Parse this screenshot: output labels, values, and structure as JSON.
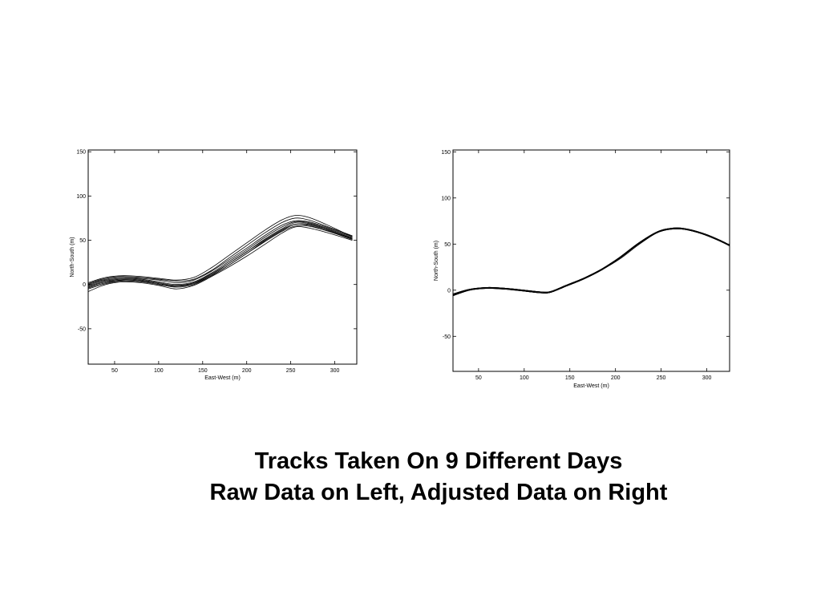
{
  "caption": {
    "line1": "Tracks Taken On 9 Different Days",
    "line2": "Raw Data on Left,  Adjusted Data on Right"
  },
  "chart_data": [
    {
      "type": "line",
      "xlabel": "East-West (m)",
      "ylabel": "North-South (m)",
      "xlim": [
        20,
        325
      ],
      "ylim": [
        -90,
        152
      ],
      "xticks": [
        50,
        100,
        150,
        200,
        250,
        300
      ],
      "yticks": [
        -50,
        0,
        50,
        100,
        150
      ],
      "grid": false,
      "line_color": "#000000",
      "series": [
        {
          "x": [
            20,
            40,
            60,
            80,
            100,
            120,
            140,
            160,
            180,
            200,
            220,
            240,
            255,
            270,
            290,
            320
          ],
          "y": [
            -8,
            0,
            3,
            2,
            -1,
            -5,
            -1,
            9,
            20,
            32,
            45,
            58,
            65,
            64,
            59,
            50
          ]
        },
        {
          "x": [
            20,
            40,
            60,
            80,
            100,
            120,
            140,
            160,
            180,
            200,
            220,
            240,
            255,
            270,
            290,
            320
          ],
          "y": [
            -5,
            1,
            4,
            3,
            0,
            -3,
            0,
            10,
            22,
            35,
            49,
            61,
            68,
            67,
            61,
            51
          ]
        },
        {
          "x": [
            20,
            40,
            60,
            80,
            100,
            120,
            140,
            160,
            180,
            200,
            220,
            240,
            255,
            270,
            290,
            320
          ],
          "y": [
            -3,
            3,
            5,
            4,
            1,
            -2,
            2,
            12,
            24,
            37,
            51,
            63,
            70,
            69,
            63,
            52
          ]
        },
        {
          "x": [
            20,
            40,
            60,
            80,
            100,
            120,
            140,
            160,
            180,
            200,
            220,
            240,
            255,
            270,
            290,
            320
          ],
          "y": [
            -1,
            5,
            7,
            6,
            3,
            0,
            3,
            13,
            26,
            39,
            53,
            65,
            71,
            70,
            64,
            53
          ]
        },
        {
          "x": [
            20,
            40,
            60,
            80,
            100,
            120,
            140,
            160,
            180,
            200,
            220,
            240,
            255,
            270,
            290,
            320
          ],
          "y": [
            0,
            6,
            8,
            7,
            5,
            2,
            5,
            15,
            28,
            41,
            55,
            67,
            72,
            71,
            65,
            54
          ]
        },
        {
          "x": [
            20,
            40,
            60,
            80,
            100,
            120,
            140,
            160,
            180,
            200,
            220,
            240,
            255,
            270,
            290,
            320
          ],
          "y": [
            -2,
            4,
            6,
            5,
            2,
            -1,
            2,
            11,
            24,
            37,
            50,
            62,
            68,
            68,
            62,
            51
          ]
        },
        {
          "x": [
            20,
            40,
            60,
            80,
            100,
            120,
            140,
            160,
            180,
            200,
            220,
            240,
            255,
            270,
            290,
            320
          ],
          "y": [
            1,
            7,
            9,
            8,
            6,
            4,
            6,
            16,
            30,
            44,
            58,
            70,
            75,
            73,
            66,
            55
          ]
        },
        {
          "x": [
            20,
            40,
            60,
            80,
            100,
            120,
            140,
            160,
            180,
            200,
            220,
            240,
            255,
            270,
            290,
            320
          ],
          "y": [
            2,
            8,
            10,
            9,
            7,
            5,
            8,
            19,
            33,
            47,
            61,
            73,
            78,
            76,
            68,
            54
          ]
        },
        {
          "x": [
            20,
            40,
            60,
            80,
            100,
            120,
            140,
            160,
            180,
            200,
            220,
            240,
            255,
            270,
            290,
            320
          ],
          "y": [
            -4,
            2,
            5,
            4,
            1,
            -2,
            1,
            10,
            22,
            35,
            48,
            60,
            66,
            66,
            61,
            52
          ]
        }
      ]
    },
    {
      "type": "line",
      "xlabel": "East-West (m)",
      "ylabel": "North-South (m)",
      "xlim": [
        22,
        325
      ],
      "ylim": [
        -88,
        152
      ],
      "xticks": [
        50,
        100,
        150,
        200,
        250,
        300
      ],
      "yticks": [
        -50,
        0,
        50,
        100,
        150
      ],
      "grid": false,
      "line_color": "#000000",
      "series": [
        {
          "x": [
            22,
            40,
            60,
            80,
            100,
            120,
            130,
            145,
            165,
            185,
            205,
            225,
            245,
            260,
            275,
            295,
            315,
            325
          ],
          "y": [
            -6,
            0,
            2,
            1,
            -1,
            -3,
            -2,
            4,
            12,
            22,
            35,
            50,
            62,
            66,
            66,
            61,
            53,
            48
          ]
        },
        {
          "x": [
            22,
            40,
            60,
            80,
            100,
            120,
            130,
            145,
            165,
            185,
            205,
            225,
            245,
            260,
            275,
            295,
            315,
            325
          ],
          "y": [
            -5,
            1,
            3,
            2,
            0,
            -2,
            -1,
            5,
            13,
            23,
            36,
            51,
            63,
            67,
            66,
            62,
            54,
            48
          ]
        },
        {
          "x": [
            22,
            40,
            60,
            80,
            100,
            120,
            130,
            145,
            165,
            185,
            205,
            225,
            245,
            260,
            275,
            295,
            315,
            325
          ],
          "y": [
            -4,
            1,
            3,
            2,
            0,
            -2,
            -2,
            5,
            13,
            22,
            35,
            50,
            63,
            67,
            67,
            62,
            54,
            49
          ]
        },
        {
          "x": [
            22,
            40,
            60,
            80,
            100,
            120,
            130,
            145,
            165,
            185,
            205,
            225,
            245,
            260,
            275,
            295,
            315,
            325
          ],
          "y": [
            -5,
            0,
            2,
            2,
            -1,
            -3,
            -2,
            4,
            12,
            22,
            34,
            49,
            62,
            66,
            66,
            61,
            53,
            48
          ]
        },
        {
          "x": [
            22,
            40,
            60,
            80,
            100,
            120,
            130,
            145,
            165,
            185,
            205,
            225,
            245,
            260,
            275,
            295,
            315,
            325
          ],
          "y": [
            -6,
            0,
            3,
            1,
            -1,
            -3,
            -2,
            4,
            12,
            23,
            36,
            51,
            63,
            66,
            66,
            61,
            53,
            48
          ]
        },
        {
          "x": [
            22,
            40,
            60,
            80,
            100,
            120,
            130,
            145,
            165,
            185,
            205,
            225,
            245,
            260,
            275,
            295,
            315,
            325
          ],
          "y": [
            -5,
            1,
            2,
            1,
            0,
            -2,
            -1,
            5,
            13,
            23,
            35,
            50,
            62,
            67,
            67,
            62,
            54,
            49
          ]
        },
        {
          "x": [
            22,
            40,
            60,
            80,
            100,
            120,
            130,
            145,
            165,
            185,
            205,
            225,
            245,
            260,
            275,
            295,
            315,
            325
          ],
          "y": [
            -4,
            1,
            3,
            2,
            0,
            -3,
            -2,
            4,
            12,
            22,
            35,
            50,
            62,
            66,
            66,
            61,
            53,
            48
          ]
        },
        {
          "x": [
            22,
            40,
            60,
            80,
            100,
            120,
            130,
            145,
            165,
            185,
            205,
            225,
            245,
            260,
            275,
            295,
            315,
            325
          ],
          "y": [
            -5,
            0,
            2,
            1,
            -1,
            -3,
            -2,
            4,
            12,
            22,
            35,
            50,
            63,
            67,
            66,
            61,
            53,
            48
          ]
        },
        {
          "x": [
            22,
            40,
            60,
            80,
            100,
            120,
            130,
            145,
            165,
            185,
            205,
            225,
            245,
            260,
            275,
            295,
            315,
            325
          ],
          "y": [
            -6,
            0,
            2,
            2,
            0,
            -2,
            -2,
            4,
            13,
            23,
            36,
            51,
            63,
            67,
            67,
            62,
            54,
            49
          ]
        }
      ]
    }
  ]
}
